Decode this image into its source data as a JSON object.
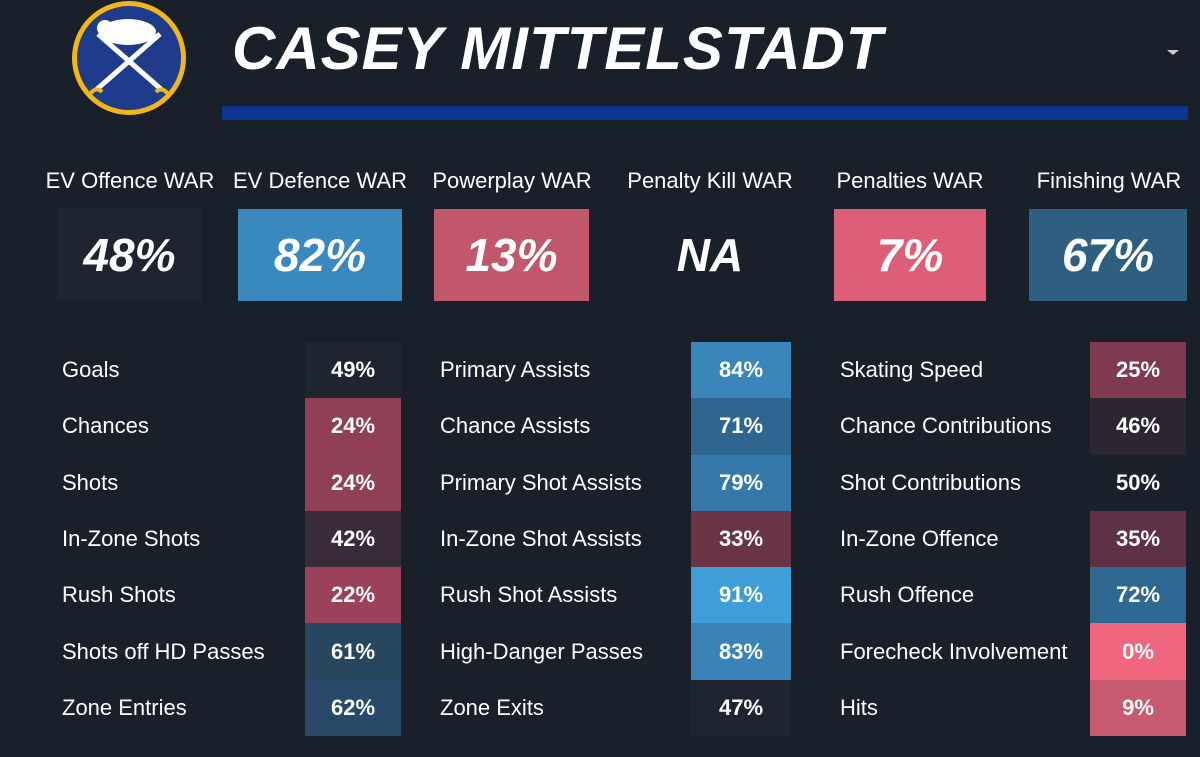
{
  "header": {
    "title": "CASEY MITTELSTADT"
  },
  "war": [
    {
      "label": "EV Offence WAR",
      "value": "48%",
      "color": "#1f2530"
    },
    {
      "label": "EV Defence WAR",
      "value": "82%",
      "color": "#3a88c0"
    },
    {
      "label": "Powerplay WAR",
      "value": "13%",
      "color": "#c2566a"
    },
    {
      "label": "Penalty Kill WAR",
      "value": "NA"
    },
    {
      "label": "Penalties WAR",
      "value": "7%",
      "color": "#dc5f77"
    },
    {
      "label": "Finishing WAR",
      "value": "67%",
      "color": "#2f5f80"
    }
  ],
  "metrics": [
    [
      {
        "label": "Goals",
        "value": "49%",
        "color": "#1f2530"
      },
      {
        "label": "Chances",
        "value": "24%",
        "color": "#8f3f56"
      },
      {
        "label": "Shots",
        "value": "24%",
        "color": "#8f3f56"
      },
      {
        "label": "In-Zone Shots",
        "value": "42%",
        "color": "#3a2b3a"
      },
      {
        "label": "Rush Shots",
        "value": "22%",
        "color": "#9a4259"
      },
      {
        "label": "Shots off HD Passes",
        "value": "61%",
        "color": "#27475e"
      },
      {
        "label": "Zone Entries",
        "value": "62%",
        "color": "#28496a"
      }
    ],
    [
      {
        "label": "Primary Assists",
        "value": "84%",
        "color": "#3a86bb"
      },
      {
        "label": "Chance Assists",
        "value": "71%",
        "color": "#2f6690"
      },
      {
        "label": "Primary Shot Assists",
        "value": "79%",
        "color": "#3479aa"
      },
      {
        "label": "In-Zone Shot Assists",
        "value": "33%",
        "color": "#6b3444"
      },
      {
        "label": "Rush Shot Assists",
        "value": "91%",
        "color": "#3f9ed8"
      },
      {
        "label": "High-Danger Passes",
        "value": "83%",
        "color": "#3a83b8"
      },
      {
        "label": "Zone Exits",
        "value": "47%",
        "color": "#1f2530"
      }
    ],
    [
      {
        "label": "Skating Speed",
        "value": "25%",
        "color": "#7f3a50"
      },
      {
        "label": "Chance Contributions",
        "value": "46%",
        "color": "#2b2632"
      },
      {
        "label": "Shot Contributions",
        "value": "50%",
        "color": "#1b212b"
      },
      {
        "label": "In-Zone Offence",
        "value": "35%",
        "color": "#5e3244"
      },
      {
        "label": "Rush Offence",
        "value": "72%",
        "color": "#2f6992"
      },
      {
        "label": "Forecheck Involvement",
        "value": "0%",
        "color": "#f0667f"
      },
      {
        "label": "Hits",
        "value": "9%",
        "color": "#c85a70"
      }
    ]
  ]
}
